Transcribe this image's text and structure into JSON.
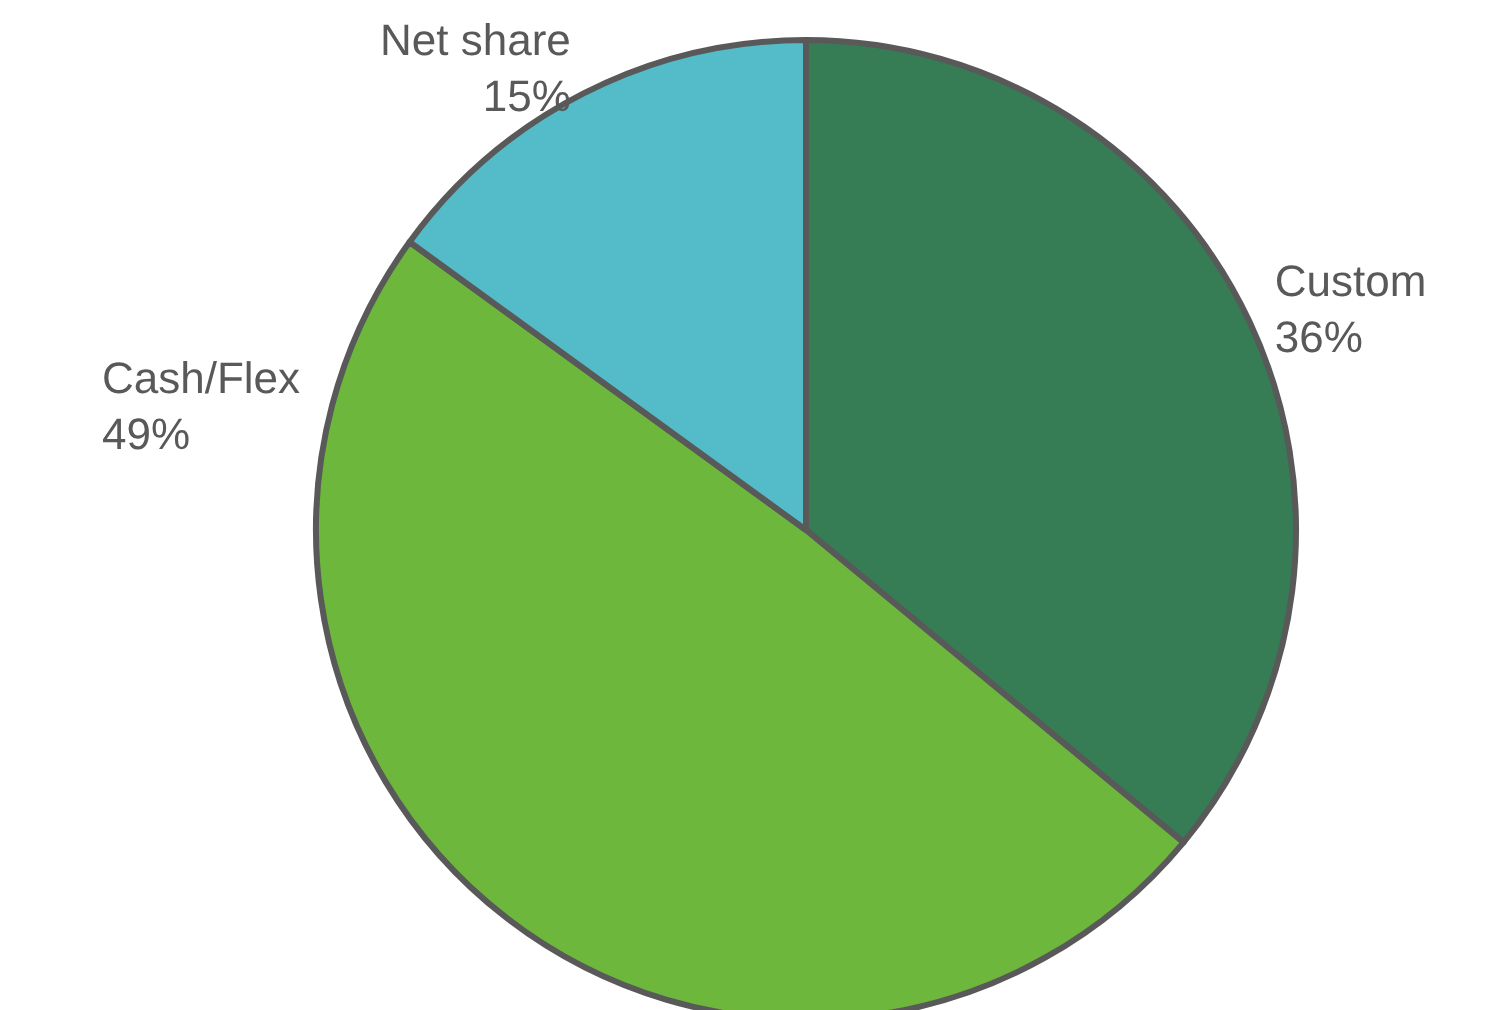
{
  "chart_data": {
    "type": "pie",
    "categories": [
      "Custom",
      "Cash/Flex",
      "Net share"
    ],
    "values": [
      36,
      49,
      15
    ],
    "colors": [
      "#367c55",
      "#6cb73c",
      "#54bcc8"
    ],
    "value_labels": [
      "36%",
      "49%",
      "15%"
    ],
    "legend": false
  }
}
